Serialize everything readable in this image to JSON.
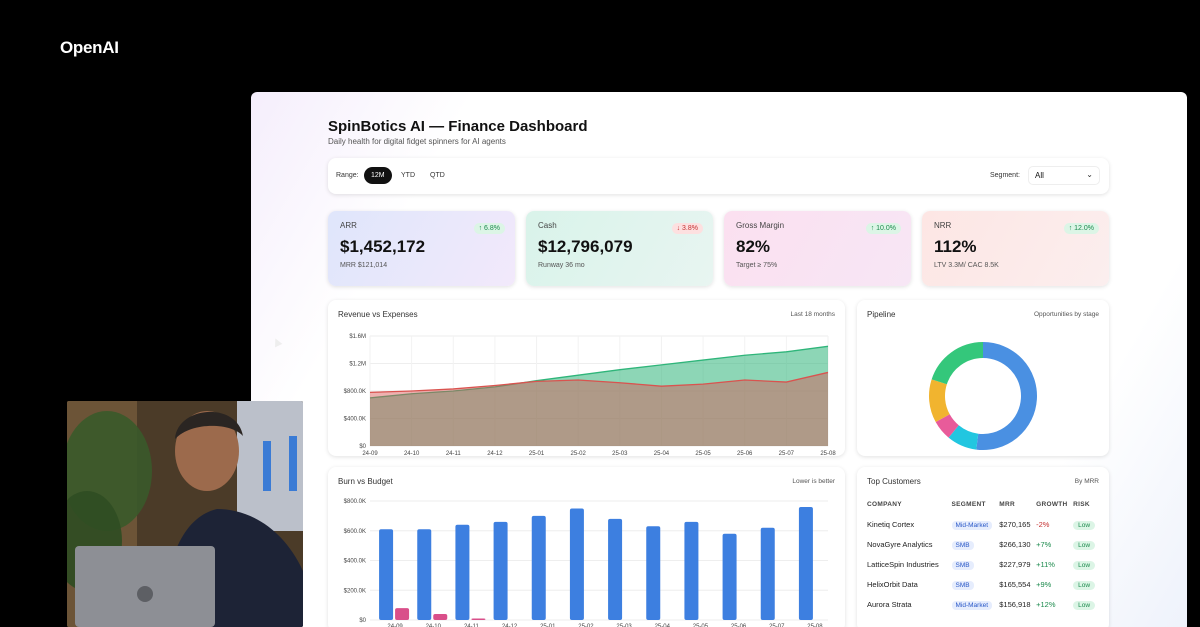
{
  "brand": "OpenAI",
  "dashboard": {
    "title": "SpinBotics AI — Finance Dashboard",
    "subtitle": "Daily health for digital fidget spinners for AI agents",
    "range_label": "Range:",
    "range_options": [
      "12M",
      "YTD",
      "QTD"
    ],
    "range_selected": "12M",
    "segment_label": "Segment:",
    "segment_value": "All"
  },
  "kpis": [
    {
      "label": "ARR",
      "value": "$1,452,172",
      "note": "MRR $121,014",
      "delta": "↑ 6.8%",
      "direction": "up",
      "gradient": [
        "#dfe6fb",
        "#f2e9fb"
      ]
    },
    {
      "label": "Cash",
      "value": "$12,796,079",
      "note": "Runway 36 mo",
      "delta": "↓ 3.8%",
      "direction": "down",
      "gradient": [
        "#d9f3ea",
        "#e8f5f1"
      ]
    },
    {
      "label": "Gross Margin",
      "value": "82%",
      "note": "Target ≥ 75%",
      "delta": "↑ 10.0%",
      "direction": "up",
      "gradient": [
        "#fbe0f0",
        "#f7e6f5"
      ]
    },
    {
      "label": "NRR",
      "value": "112%",
      "note": "LTV 3.3M/ CAC 8.5K",
      "delta": "↑ 12.0%",
      "direction": "up",
      "gradient": [
        "#fde6e4",
        "#fbeeee"
      ]
    }
  ],
  "revenue_panel": {
    "title": "Revenue vs Expenses",
    "hint": "Last 18 months"
  },
  "pipeline_panel": {
    "title": "Pipeline",
    "hint": "Opportunities by stage"
  },
  "burn_panel": {
    "title": "Burn vs Budget",
    "hint": "Lower is better"
  },
  "customers_panel": {
    "title": "Top Customers",
    "hint": "By MRR",
    "columns": [
      "COMPANY",
      "SEGMENT",
      "MRR",
      "GROWTH",
      "RISK"
    ],
    "rows": [
      {
        "company": "Kinetiq Cortex",
        "segment": "Mid-Market",
        "mrr": "$270,165",
        "growth": "-2%",
        "risk": "Low"
      },
      {
        "company": "NovaGyre Analytics",
        "segment": "SMB",
        "mrr": "$266,130",
        "growth": "+7%",
        "risk": "Low"
      },
      {
        "company": "LatticeSpin Industries",
        "segment": "SMB",
        "mrr": "$227,979",
        "growth": "+11%",
        "risk": "Low"
      },
      {
        "company": "HelixOrbit Data",
        "segment": "SMB",
        "mrr": "$165,554",
        "growth": "+9%",
        "risk": "Low"
      },
      {
        "company": "Aurora Strata",
        "segment": "Mid-Market",
        "mrr": "$156,918",
        "growth": "+12%",
        "risk": "Low"
      }
    ]
  },
  "chart_data": [
    {
      "type": "area",
      "title": "Revenue vs Expenses",
      "x": [
        "24-09",
        "24-10",
        "24-11",
        "24-12",
        "25-01",
        "25-02",
        "25-03",
        "25-04",
        "25-05",
        "25-06",
        "25-07",
        "25-08"
      ],
      "yticks": [
        "$0",
        "$400.0K",
        "$800.0K",
        "$1.2M",
        "$1.6M"
      ],
      "ylim": [
        0,
        1600000
      ],
      "series": [],
      "unnamed_series": [
        {
          "color": "#2fb57a",
          "values": [
            700000,
            760000,
            800000,
            860000,
            950000,
            1030000,
            1110000,
            1180000,
            1250000,
            1320000,
            1370000,
            1450000
          ]
        },
        {
          "color": "#d9534f",
          "values": [
            780000,
            800000,
            830000,
            880000,
            940000,
            960000,
            920000,
            870000,
            900000,
            960000,
            930000,
            1070000
          ]
        }
      ],
      "grid": true
    },
    {
      "type": "pie",
      "title": "Pipeline",
      "slices": [
        {
          "value": 52,
          "color": "#4a90e2"
        },
        {
          "value": 9,
          "color": "#22c6e0"
        },
        {
          "value": 6,
          "color": "#e85b9a"
        },
        {
          "value": 13,
          "color": "#f1b42f"
        },
        {
          "value": 20,
          "color": "#34c77b"
        }
      ]
    },
    {
      "type": "bar",
      "title": "Burn vs Budget",
      "categories": [
        "24-09",
        "24-10",
        "24-11",
        "24-12",
        "25-01",
        "25-02",
        "25-03",
        "25-04",
        "25-05",
        "25-06",
        "25-07",
        "25-08"
      ],
      "yticks": [
        "$0",
        "$200.0K",
        "$400.0K",
        "$600.0K",
        "$800.0K"
      ],
      "ylim": [
        0,
        800000
      ],
      "series": [],
      "unnamed_series": [
        {
          "color": "#3d7fe0",
          "values": [
            610000,
            610000,
            640000,
            660000,
            700000,
            750000,
            680000,
            630000,
            660000,
            580000,
            620000,
            760000
          ]
        },
        {
          "color": "#d94f8a",
          "values": [
            80000,
            40000,
            10000,
            0,
            0,
            0,
            0,
            0,
            0,
            0,
            0,
            0
          ]
        }
      ]
    }
  ]
}
